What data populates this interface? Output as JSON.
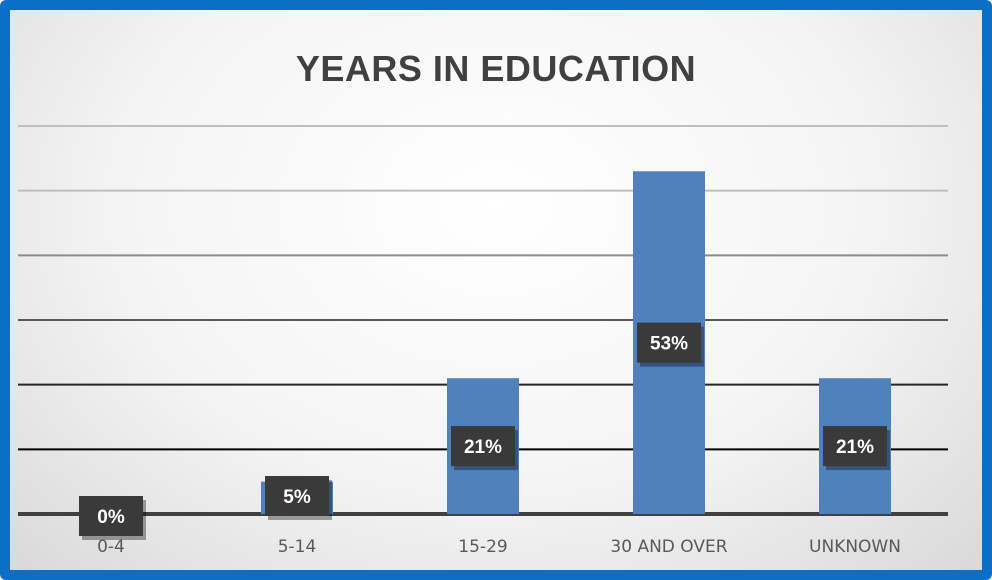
{
  "chart_data": {
    "type": "bar",
    "title": "YEARS IN EDUCATION",
    "categories": [
      "0-4",
      "5-14",
      "15-29",
      "30 AND OVER",
      "UNKNOWN"
    ],
    "values": [
      0,
      5,
      21,
      53,
      21
    ],
    "data_labels": [
      "0%",
      "5%",
      "21%",
      "53%",
      "21%"
    ],
    "ylim": [
      0,
      60
    ],
    "grid": true,
    "bar_color": "#4f81bd",
    "frame_color": "#0b6fc6"
  }
}
